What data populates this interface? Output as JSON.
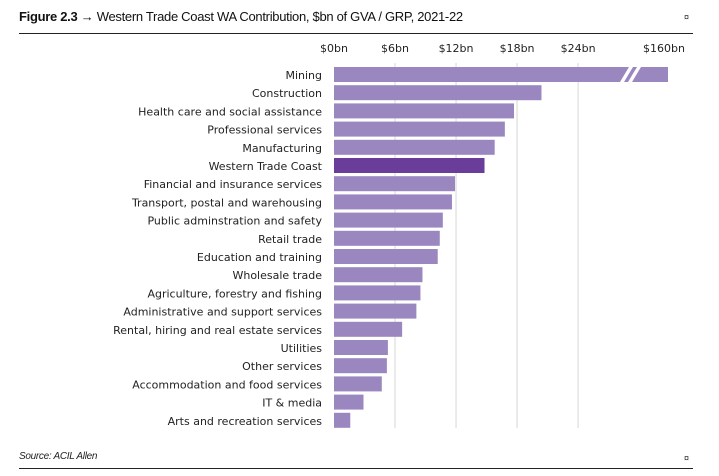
{
  "figure": {
    "number": "Figure 2.3",
    "arrow": "→",
    "title": "Western Trade Coast WA Contribution, $bn of GVA / GRP, 2021-22",
    "end_mark": "¤",
    "source": "Source: ACIL Allen"
  },
  "chart_data": {
    "type": "bar",
    "orientation": "horizontal",
    "title": "",
    "xlabel": "",
    "ylabel": "",
    "xlim": [
      0,
      160
    ],
    "axis_break": {
      "from": 24,
      "to": 160
    },
    "x_ticks": [
      "$0bn",
      "$6bn",
      "$12bn",
      "$18bn",
      "$24bn",
      "$160bn"
    ],
    "x_tick_values": [
      0,
      6,
      12,
      18,
      24,
      160
    ],
    "x_tick_position": "top",
    "grid": true,
    "colors": {
      "default": "#9b87c0",
      "highlight": "#6a3d9a"
    },
    "highlight": "Western Trade Coast",
    "categories": [
      "Mining",
      "Construction",
      "Health care and social assistance",
      "Professional services",
      "Manufacturing",
      "Western Trade Coast",
      "Financial and insurance services",
      "Transport, postal and warehousing",
      "Public adminstration and safety",
      "Retail trade",
      "Education and training",
      "Wholesale trade",
      "Agriculture, forestry and fishing",
      "Administrative and support services",
      "Rental, hiring and real estate services",
      "Utilities",
      "Other services",
      "Accommodation and food services",
      "IT & media",
      "Arts and recreation services"
    ],
    "values": [
      160,
      20.4,
      17.7,
      16.8,
      15.8,
      14.8,
      11.9,
      11.6,
      10.7,
      10.4,
      10.2,
      8.7,
      8.5,
      8.1,
      6.7,
      5.3,
      5.2,
      4.7,
      2.9,
      1.6
    ]
  }
}
